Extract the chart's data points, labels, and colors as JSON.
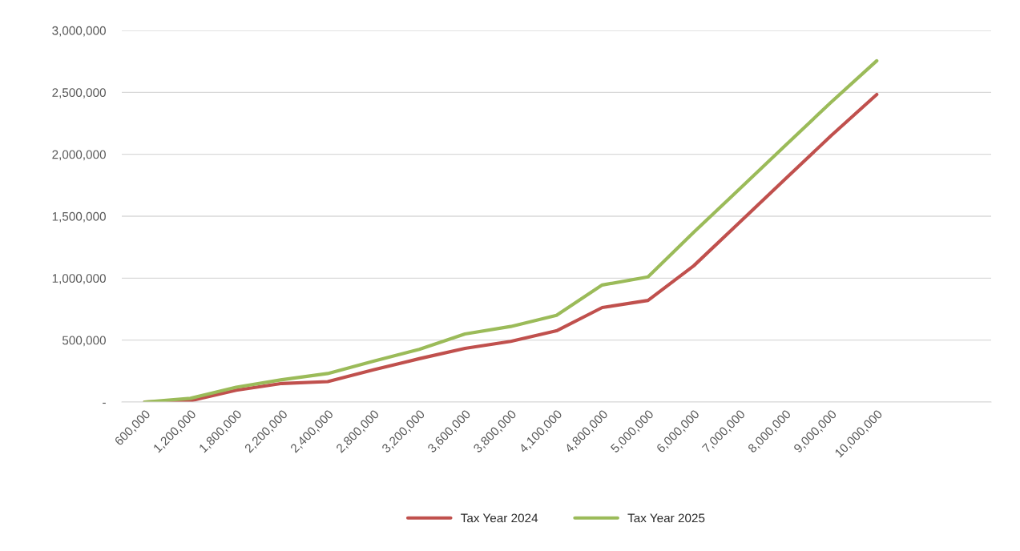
{
  "chart_data": {
    "type": "line",
    "categories": [
      "600,000",
      "1,200,000",
      "1,800,000",
      "2,200,000",
      "2,400,000",
      "2,800,000",
      "3,200,000",
      "3,600,000",
      "3,800,000",
      "4,100,000",
      "4,800,000",
      "5,000,000",
      "6,000,000",
      "7,000,000",
      "8,000,000",
      "9,000,000",
      "10,000,000",
      null,
      null
    ],
    "series": [
      {
        "name": "Tax Year 2024",
        "color": "#c0504d",
        "values": [
          0,
          10000,
          95000,
          150000,
          165000,
          260000,
          350000,
          433000,
          490000,
          575000,
          763000,
          820000,
          1100000,
          1450000,
          1800000,
          2150000,
          2483000,
          null,
          null
        ]
      },
      {
        "name": "Tax Year 2025",
        "color": "#9bbb59",
        "values": [
          0,
          30000,
          120000,
          180000,
          230000,
          330000,
          425000,
          550000,
          610000,
          700000,
          945000,
          1010000,
          1370000,
          1720000,
          2070000,
          2420000,
          2755000,
          null,
          null
        ]
      }
    ],
    "ylim": [
      0,
      3000000
    ],
    "yticks": [
      {
        "value": 0,
        "label": "-"
      },
      {
        "value": 500000,
        "label": "500,000"
      },
      {
        "value": 1000000,
        "label": "1,000,000"
      },
      {
        "value": 1500000,
        "label": "1,500,000"
      },
      {
        "value": 2000000,
        "label": "2,000,000"
      },
      {
        "value": 2500000,
        "label": "2,500,000"
      },
      {
        "value": 3000000,
        "label": "3,000,000"
      }
    ],
    "grid": "y",
    "legend": "bottom",
    "marker": "none",
    "line_style": "solid"
  }
}
